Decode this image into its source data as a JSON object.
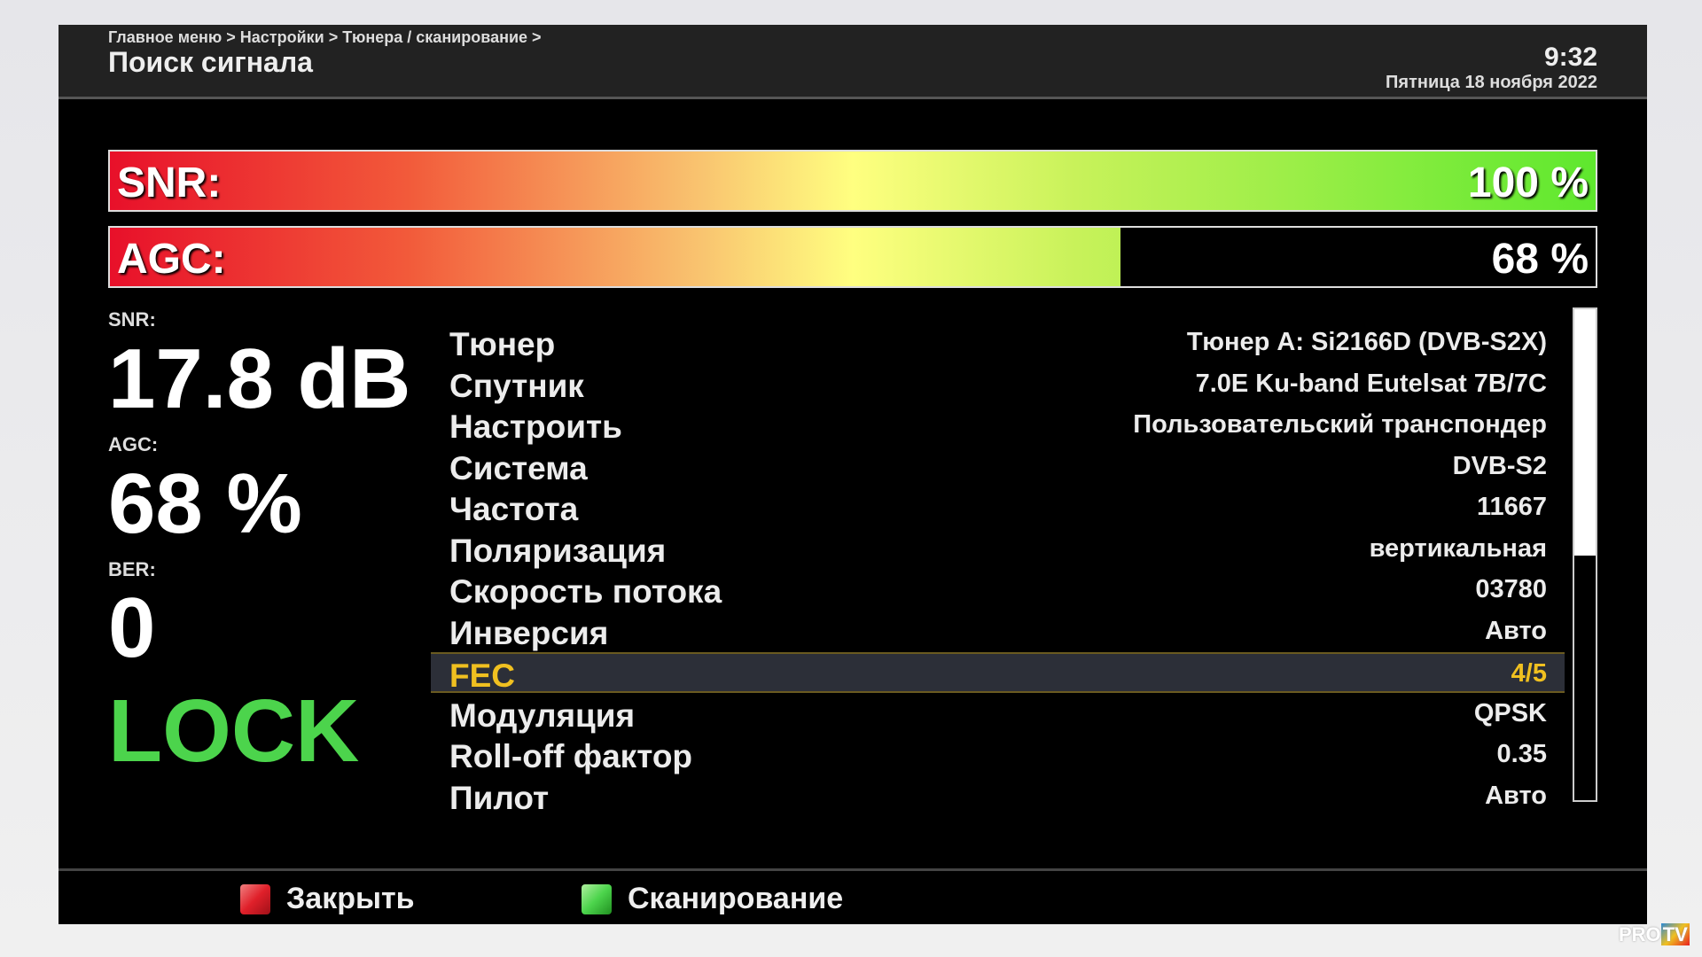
{
  "header": {
    "breadcrumb": "Главное меню > Настройки > Тюнера / сканирование >",
    "title": "Поиск сигнала",
    "time": "9:32",
    "date": "Пятница 18 ноября 2022"
  },
  "bars": {
    "snr_label": "SNR:",
    "snr_value": "100 %",
    "snr_percent": 100,
    "agc_label": "AGC:",
    "agc_value": "68 %",
    "agc_percent": 68
  },
  "stats": {
    "snr_label": "SNR:",
    "snr_value": "17.8 dB",
    "agc_label": "AGC:",
    "agc_value": "68 %",
    "ber_label": "BER:",
    "ber_value": "0",
    "status": "LOCK",
    "status_color": "#4cd44c"
  },
  "params": [
    {
      "label": "Тюнер",
      "value": "Тюнер A: Si2166D (DVB-S2X)"
    },
    {
      "label": "Спутник",
      "value": "7.0E Ku-band Eutelsat 7B/7C"
    },
    {
      "label": "Настроить",
      "value": "Пользовательский транспондер"
    },
    {
      "label": "Система",
      "value": "DVB-S2"
    },
    {
      "label": "Частота",
      "value": "11667"
    },
    {
      "label": "Поляризация",
      "value": "вертикальная"
    },
    {
      "label": "Скорость потока",
      "value": "03780"
    },
    {
      "label": "Инверсия",
      "value": "Авто"
    },
    {
      "label": "FEC",
      "value": "4/5"
    },
    {
      "label": "Модуляция",
      "value": "QPSK"
    },
    {
      "label": "Roll-off фактор",
      "value": "0.35"
    },
    {
      "label": "Пилот",
      "value": "Авто"
    }
  ],
  "selected_index": 8,
  "footer": {
    "close_label": "Закрыть",
    "close_color": "#e0202a",
    "scan_label": "Сканирование",
    "scan_color": "#4cd44c"
  },
  "logo": "PRO TV"
}
